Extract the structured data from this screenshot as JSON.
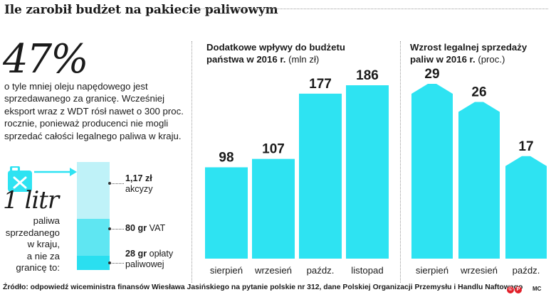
{
  "title": "Ile zarobił budżet na pakiecie paliwowym",
  "left_panel": {
    "big_stat": "47%",
    "description": "o tyle mniej oleju napędowego jest sprzedawanego za granicę. Wcześniej eksport wraz z WDT rósł nawet o 300 proc. rocznie, ponieważ producenci nie mogli sprzedać całości legalnego paliwa w kraju.",
    "litr_big": "1 litr",
    "litr_desc_lines": [
      "paliwa",
      "sprzedanego",
      "w kraju,",
      "a nie za",
      "granicę to:"
    ],
    "stack_segments": [
      {
        "amount": "1,17 zł",
        "label": "akcyzy",
        "color": "#bff2f8"
      },
      {
        "amount": "80 gr",
        "label": "VAT",
        "color": "#5fe6f2"
      },
      {
        "amount": "28 gr",
        "label": "opłaty paliwowej",
        "color": "#2adff0"
      }
    ],
    "canister_icon": "fuel-canister-icon",
    "arrow_icon": "arrow-right-icon"
  },
  "chart_data": [
    {
      "type": "bar",
      "title_bold": "Dodatkowe wpływy do budżetu państwa w 2016 r.",
      "title_unit": "(mln zł)",
      "categories": [
        "sierpień",
        "wrzesień",
        "paźdz.",
        "listopad"
      ],
      "values": [
        98,
        107,
        177,
        186
      ],
      "value_labels": [
        "98",
        "107",
        "177",
        "186"
      ],
      "ylim": [
        0,
        186
      ],
      "color": "#2ee3f2",
      "grid": false,
      "legend": "none"
    },
    {
      "type": "bar",
      "title_bold": "Wzrost legalnej sprzedaży paliw w 2016 r.",
      "title_unit": "(proc.)",
      "categories": [
        "sierpień",
        "wrzesień",
        "paźdz."
      ],
      "values": [
        29,
        26,
        17
      ],
      "value_labels": [
        "29",
        "26",
        "17"
      ],
      "ylim": [
        0,
        29
      ],
      "color": "#2ee3f2",
      "grid": false,
      "legend": "none",
      "bar_shape": "pointed-top"
    }
  ],
  "source": "Źródło: odpowiedź wiceministra finansów Wiesława Jasińskiego na pytanie polskie nr 312, dane Polskiej Organizacji Przemysłu i Handlu Naftowego",
  "author": "MC",
  "logo_icons": [
    "publisher-logo-icon",
    "publisher-logo-icon"
  ]
}
